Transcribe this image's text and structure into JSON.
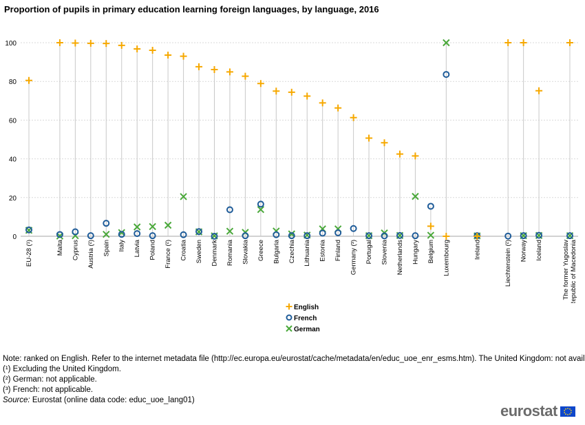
{
  "title": "Proportion of pupils in primary education learning foreign languages, by language, 2016",
  "legend": {
    "english": "English",
    "french": "French",
    "german": "German"
  },
  "colors": {
    "english": "#f6a800",
    "french": "#1f5c99",
    "german": "#4aa83a",
    "grid": "#d9d9d9",
    "stem": "#c8c8c8"
  },
  "notes": {
    "line1": "Note: ranked on English. Refer to the internet metadata file (http://ec.europa.eu/eurostat/cache/metadata/en/educ_uoe_enr_esms.htm). The United Kingdom: not available.",
    "line2": "(¹) Excluding the United Kingdom.",
    "line3": "(²) German: not applicable.",
    "line4": "(³) French: not applicable.",
    "source_label": "Source:",
    "source_text": " Eurostat (online data code: educ_uoe_lang01)"
  },
  "logo": {
    "text": "eurostat"
  },
  "chart_data": {
    "type": "scatter",
    "ylim": [
      0,
      100
    ],
    "yticks": [
      0,
      20,
      40,
      60,
      80,
      100
    ],
    "grid": true,
    "legend_position": "bottom",
    "categories": [
      "EU-28 (¹)",
      "Malta",
      "Cyprus",
      "Austria (²)",
      "Spain",
      "Italy",
      "Latvia",
      "Poland",
      "France (²)",
      "Croatia",
      "Sweden",
      "Denmark",
      "Romania",
      "Slovakia",
      "Greece",
      "Bulgaria",
      "Czechia",
      "Lithuania",
      "Estonia",
      "Finland",
      "Germany (³)",
      "Portugal",
      "Slovenia",
      "Netherlands",
      "Hungary",
      "Belgium",
      "Luxembourg",
      "Ireland",
      "Liechtenstein (²)",
      "Norway",
      "Iceland",
      "The former Yugoslav Republic of Macedonia"
    ],
    "gap_before": [
      1,
      27,
      28,
      31
    ],
    "series": [
      {
        "name": "English",
        "marker": "plus",
        "values": [
          80.5,
          100,
          99.8,
          99.7,
          99.6,
          98.6,
          96.8,
          96.1,
          93.6,
          93.0,
          87.6,
          86.1,
          84.9,
          82.7,
          78.9,
          75.0,
          74.4,
          72.4,
          68.9,
          66.3,
          61.3,
          50.7,
          48.3,
          42.5,
          41.5,
          5.2,
          0,
          0,
          100,
          100,
          75.2,
          100
        ]
      },
      {
        "name": "French",
        "marker": "circle",
        "values": [
          3.3,
          0.9,
          2.3,
          0.3,
          6.7,
          1.0,
          1.4,
          0.3,
          null,
          0.8,
          2.4,
          0,
          13.7,
          0.3,
          16.6,
          0.8,
          0.3,
          0.3,
          1.6,
          1.8,
          4.0,
          0.3,
          0.2,
          0.4,
          0.3,
          15.5,
          83.6,
          0.3,
          0.1,
          0.3,
          0.5,
          0.3
        ]
      },
      {
        "name": "German",
        "marker": "cross",
        "values": [
          3.1,
          0.1,
          0.3,
          null,
          1.0,
          1.9,
          4.8,
          5.0,
          5.7,
          20.5,
          2.3,
          0.2,
          2.6,
          2.0,
          13.8,
          2.7,
          1.2,
          0.6,
          3.8,
          3.8,
          null,
          0.3,
          1.7,
          0.4,
          20.6,
          0.5,
          100,
          0.2,
          null,
          0.3,
          0.4,
          0.3
        ]
      }
    ]
  }
}
